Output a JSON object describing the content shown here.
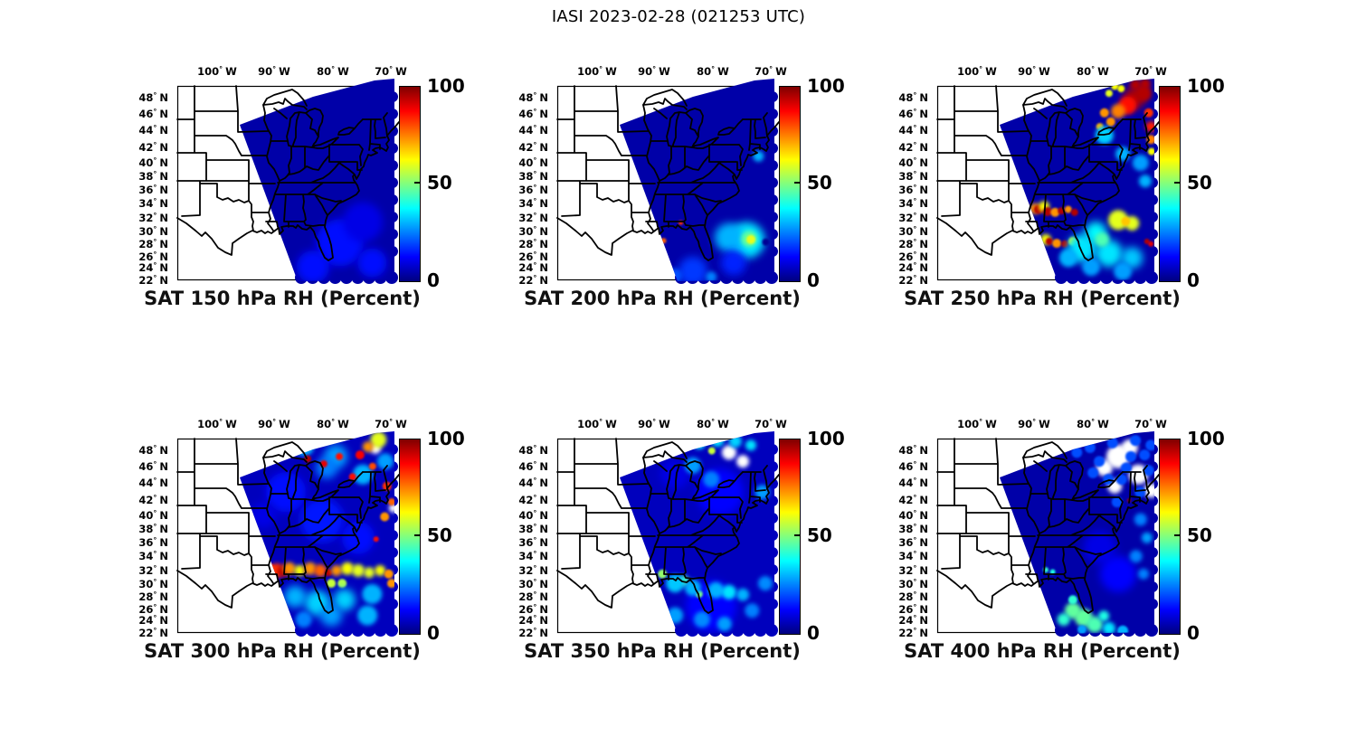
{
  "figure": {
    "title": "IASI 2023-02-28 (021253 UTC)"
  },
  "chart_data": {
    "type": "heatmap",
    "subtype": "satellite_swath_map_grid",
    "figure_title": "IASI 2023-02-28 (021253 UTC)",
    "grid": {
      "rows": 2,
      "cols": 3
    },
    "region": "Eastern United States",
    "axes": {
      "lon_ticks": [
        100,
        90,
        80,
        70
      ],
      "lon_direction": "W",
      "lat_ticks": [
        48,
        46,
        44,
        42,
        40,
        38,
        36,
        34,
        32,
        30,
        28,
        26,
        24,
        22
      ],
      "lat_direction": "N",
      "degree_symbol": "°"
    },
    "colorbar": {
      "min": 0,
      "max": 100,
      "tick_labels": [
        "100",
        "50",
        "0"
      ],
      "colormap": "jet",
      "units": "Percent"
    },
    "hotspot_format": "[lon_deg_west, lat_deg_north, rh_percent, radius_px, optional_style('nd'=no-data gap,'dot'=discrete footprint)]",
    "panels": [
      {
        "pressure_hPa": 150,
        "title": "SAT 150 hPa RH (Percent)",
        "base_rh_percent": 4,
        "hotspots": [
          [
            78.7,
            27.8,
            14,
            26
          ],
          [
            83.4,
            23.7,
            14,
            18
          ],
          [
            74.7,
            31.0,
            10,
            22
          ],
          [
            73.1,
            24.4,
            14,
            16
          ]
        ]
      },
      {
        "pressure_hPa": 200,
        "title": "SAT 200 hPa RH (Percent)",
        "base_rh_percent": 4,
        "hotspots": [
          [
            89.9,
            28.2,
            73,
            5
          ],
          [
            88.5,
            28.1,
            78,
            3
          ],
          [
            85.5,
            30.9,
            83,
            2.5
          ],
          [
            74.0,
            28.2,
            35,
            20
          ],
          [
            77.1,
            28.6,
            30,
            16
          ],
          [
            73.6,
            28.4,
            47,
            9
          ],
          [
            73.3,
            28.3,
            60,
            5
          ],
          [
            70.7,
            27.9,
            2,
            4
          ],
          [
            72.0,
            40.5,
            30,
            6
          ],
          [
            83.4,
            23.0,
            18,
            16
          ],
          [
            76.3,
            24.4,
            16,
            14
          ],
          [
            86.5,
            22.3,
            20,
            8
          ],
          [
            80.2,
            22.1,
            25,
            6
          ],
          [
            88.1,
            22.7,
            25,
            5
          ]
        ]
      },
      {
        "pressure_hPa": 250,
        "title": "SAT 250 hPa RH (Percent)",
        "base_rh_percent": 4,
        "hotspots": [
          [
            72.7,
            47.6,
            95,
            12
          ],
          [
            71.1,
            48.2,
            95,
            9
          ],
          [
            72.5,
            49.3,
            95,
            6
          ],
          [
            70.8,
            49.4,
            95,
            6
          ],
          [
            73.9,
            46.7,
            86,
            10
          ],
          [
            75.5,
            46.0,
            75,
            8
          ],
          [
            76.1,
            49.1,
            62,
            4
          ],
          [
            75.0,
            48.8,
            62,
            4
          ],
          [
            77.1,
            48.2,
            60,
            4
          ],
          [
            77.9,
            45.8,
            73,
            5
          ],
          [
            76.8,
            44.7,
            73,
            5
          ],
          [
            78.7,
            44.1,
            70,
            4
          ],
          [
            69.8,
            44.1,
            85,
            6
          ],
          [
            70.2,
            45.8,
            83,
            5
          ],
          [
            69.8,
            42.6,
            75,
            5
          ],
          [
            69.7,
            41.1,
            62,
            4
          ],
          [
            77.9,
            43.1,
            33,
            10
          ],
          [
            74.7,
            40.8,
            30,
            8
          ],
          [
            71.6,
            39.6,
            28,
            9
          ],
          [
            70.8,
            36.9,
            30,
            7
          ],
          [
            90.0,
            32.9,
            73,
            6
          ],
          [
            89.4,
            32.8,
            95,
            5
          ],
          [
            88.4,
            33.2,
            62,
            6
          ],
          [
            87.8,
            32.5,
            95,
            5
          ],
          [
            86.5,
            32.4,
            73,
            5
          ],
          [
            85.4,
            32.6,
            95,
            4
          ],
          [
            84.2,
            32.8,
            73,
            4
          ],
          [
            83.1,
            32.4,
            95,
            4
          ],
          [
            88.1,
            28.3,
            62,
            6
          ],
          [
            87.5,
            28.0,
            95,
            4
          ],
          [
            86.2,
            27.7,
            73,
            5
          ],
          [
            84.8,
            27.6,
            95,
            4
          ],
          [
            83.4,
            28.0,
            62,
            5
          ],
          [
            82.1,
            27.7,
            73,
            4
          ],
          [
            75.5,
            31.3,
            60,
            11
          ],
          [
            73.1,
            30.8,
            60,
            8
          ],
          [
            74.2,
            31.1,
            68,
            5
          ],
          [
            70.5,
            28.0,
            95,
            3
          ],
          [
            69.8,
            27.6,
            90,
            3
          ],
          [
            81.8,
            26.9,
            35,
            16
          ],
          [
            77.1,
            26.1,
            35,
            15
          ],
          [
            73.1,
            25.3,
            32,
            12
          ],
          [
            79.4,
            29.4,
            37,
            12
          ],
          [
            78.3,
            28.3,
            45,
            8
          ],
          [
            84.2,
            25.3,
            30,
            10
          ],
          [
            74.7,
            23.0,
            28,
            10
          ],
          [
            80.2,
            23.7,
            28,
            10
          ]
        ]
      },
      {
        "pressure_hPa": 300,
        "title": "SAT 300 hPa RH (Percent)",
        "base_rh_percent": 6,
        "hotspots": [
          [
            88.1,
            42.6,
            14,
            22
          ],
          [
            81.8,
            38.9,
            15,
            24
          ],
          [
            75.5,
            36.3,
            14,
            18
          ],
          [
            92.0,
            39.6,
            10,
            14
          ],
          [
            84.9,
            48.2,
            30,
            11
          ],
          [
            79.4,
            46.9,
            28,
            13
          ],
          [
            74.7,
            44.7,
            30,
            11
          ],
          [
            70.8,
            46.3,
            28,
            9
          ],
          [
            83.4,
            49.2,
            33,
            8
          ],
          [
            81.0,
            45.5,
            25,
            12
          ],
          [
            72.5,
            47.9,
            0,
            6,
            "nd"
          ],
          [
            69.4,
            40.6,
            0,
            5,
            "nd"
          ],
          [
            72.0,
            49.0,
            60,
            9
          ],
          [
            73.8,
            48.1,
            73,
            6
          ],
          [
            84.3,
            46.6,
            95,
            4
          ],
          [
            81.5,
            46.0,
            90,
            4
          ],
          [
            78.8,
            46.9,
            86,
            4
          ],
          [
            75.2,
            47.1,
            88,
            5
          ],
          [
            73.0,
            45.7,
            80,
            4
          ],
          [
            70.5,
            43.3,
            83,
            5
          ],
          [
            76.5,
            44.4,
            86,
            4
          ],
          [
            70.9,
            39.4,
            73,
            5
          ],
          [
            69.7,
            41.4,
            78,
            4
          ],
          [
            72.4,
            36.1,
            86,
            3
          ],
          [
            90.6,
            32.0,
            83,
            4
          ],
          [
            89.7,
            31.6,
            83,
            8
          ],
          [
            88.6,
            31.5,
            95,
            6
          ],
          [
            87.5,
            31.9,
            73,
            7
          ],
          [
            85.7,
            31.6,
            62,
            6
          ],
          [
            83.9,
            31.9,
            73,
            7
          ],
          [
            82.1,
            31.6,
            78,
            7
          ],
          [
            80.7,
            31.3,
            95,
            4
          ],
          [
            79.3,
            31.6,
            73,
            6
          ],
          [
            77.4,
            31.9,
            62,
            7
          ],
          [
            75.5,
            31.6,
            60,
            7
          ],
          [
            73.6,
            31.3,
            60,
            6
          ],
          [
            71.7,
            31.6,
            62,
            6
          ],
          [
            70.2,
            31.1,
            73,
            5
          ],
          [
            69.7,
            29.7,
            73,
            5
          ],
          [
            80.2,
            29.7,
            57,
            5
          ],
          [
            78.3,
            29.7,
            55,
            5
          ],
          [
            86.5,
            27.6,
            30,
            12
          ],
          [
            82.6,
            26.6,
            33,
            14
          ],
          [
            77.9,
            27.1,
            33,
            12
          ],
          [
            73.1,
            28.0,
            30,
            11
          ],
          [
            80.2,
            24.4,
            28,
            12
          ],
          [
            73.9,
            24.4,
            30,
            11
          ],
          [
            85.0,
            23.7,
            25,
            9
          ]
        ]
      },
      {
        "pressure_hPa": 350,
        "title": "SAT 350 hPa RH (Percent)",
        "base_rh_percent": 6,
        "hotspots": [
          [
            78.7,
            42.6,
            13,
            26
          ],
          [
            86.5,
            44.7,
            10,
            16
          ],
          [
            80.2,
            26.1,
            13,
            28
          ],
          [
            77.1,
            47.4,
            0,
            8,
            "nd"
          ],
          [
            74.7,
            46.3,
            0,
            7,
            "nd"
          ],
          [
            84.8,
            49.2,
            35,
            7
          ],
          [
            82.3,
            48.6,
            37,
            7
          ],
          [
            79.1,
            48.9,
            35,
            7
          ],
          [
            76.0,
            48.8,
            33,
            7
          ],
          [
            73.3,
            48.3,
            35,
            6
          ],
          [
            80.1,
            47.6,
            57,
            4
          ],
          [
            83.4,
            45.8,
            28,
            9
          ],
          [
            80.2,
            44.1,
            25,
            9
          ],
          [
            71.3,
            42.6,
            28,
            8
          ],
          [
            88.7,
            31.1,
            52,
            5
          ],
          [
            85.0,
            30.1,
            45,
            6
          ],
          [
            82.3,
            28.0,
            50,
            4
          ],
          [
            86.5,
            29.7,
            32,
            10
          ],
          [
            83.4,
            29.0,
            30,
            9
          ],
          [
            79.4,
            28.6,
            30,
            9
          ],
          [
            77.1,
            28.3,
            35,
            8
          ],
          [
            74.7,
            27.9,
            30,
            7
          ],
          [
            86.5,
            24.4,
            28,
            9
          ],
          [
            81.8,
            23.7,
            26,
            9
          ],
          [
            77.9,
            23.0,
            28,
            8
          ],
          [
            73.1,
            25.3,
            25,
            8
          ],
          [
            70.8,
            29.7,
            26,
            8
          ]
        ]
      },
      {
        "pressure_hPa": 400,
        "title": "SAT 400 hPa RH (Percent)",
        "base_rh_percent": 4,
        "hotspots": [
          [
            78.7,
            34.9,
            10,
            18
          ],
          [
            75.5,
            31.1,
            13,
            20
          ],
          [
            75.5,
            46.9,
            0,
            13,
            "nd"
          ],
          [
            72.0,
            44.7,
            0,
            11,
            "nd"
          ],
          [
            77.9,
            45.5,
            0,
            9,
            "nd"
          ],
          [
            73.5,
            48.0,
            0,
            9,
            "nd"
          ],
          [
            69.8,
            42.8,
            0,
            8,
            "nd"
          ],
          [
            76.1,
            43.3,
            0,
            8,
            "nd"
          ],
          [
            76.5,
            48.6,
            20,
            6,
            "dot"
          ],
          [
            72.5,
            48.9,
            20,
            6,
            "dot"
          ],
          [
            69.8,
            48.3,
            20,
            6,
            "dot"
          ],
          [
            80.4,
            48.0,
            20,
            6,
            "dot"
          ],
          [
            78.8,
            46.3,
            20,
            6,
            "dot"
          ],
          [
            82.7,
            47.4,
            20,
            6,
            "dot"
          ],
          [
            73.3,
            46.9,
            20,
            6,
            "dot"
          ],
          [
            70.2,
            45.2,
            20,
            6,
            "dot"
          ],
          [
            74.9,
            44.1,
            20,
            6,
            "dot"
          ],
          [
            71.7,
            42.6,
            20,
            6,
            "dot"
          ],
          [
            75.7,
            41.4,
            20,
            6,
            "dot"
          ],
          [
            77.2,
            44.1,
            20,
            6,
            "dot"
          ],
          [
            74.1,
            45.5,
            20,
            6,
            "dot"
          ],
          [
            70.9,
            47.1,
            20,
            6,
            "dot"
          ],
          [
            79.9,
            44.9,
            20,
            6,
            "dot"
          ],
          [
            73.6,
            41.6,
            95,
            2
          ],
          [
            71.6,
            39.0,
            25,
            7
          ],
          [
            70.5,
            36.3,
            28,
            6
          ],
          [
            72.4,
            33.6,
            25,
            7
          ],
          [
            71.1,
            31.1,
            25,
            6
          ],
          [
            88.1,
            31.7,
            42,
            3
          ],
          [
            86.9,
            31.4,
            40,
            3
          ],
          [
            83.4,
            25.3,
            47,
            9
          ],
          [
            81.5,
            24.0,
            47,
            10
          ],
          [
            79.6,
            22.9,
            45,
            9
          ],
          [
            78.0,
            24.3,
            40,
            6
          ],
          [
            83.4,
            27.1,
            42,
            5
          ],
          [
            77.1,
            22.3,
            35,
            7
          ],
          [
            85.0,
            23.7,
            42,
            7
          ],
          [
            74.7,
            21.9,
            30,
            6,
            "dot"
          ],
          [
            81.8,
            22.1,
            28,
            5,
            "dot"
          ]
        ]
      }
    ]
  }
}
